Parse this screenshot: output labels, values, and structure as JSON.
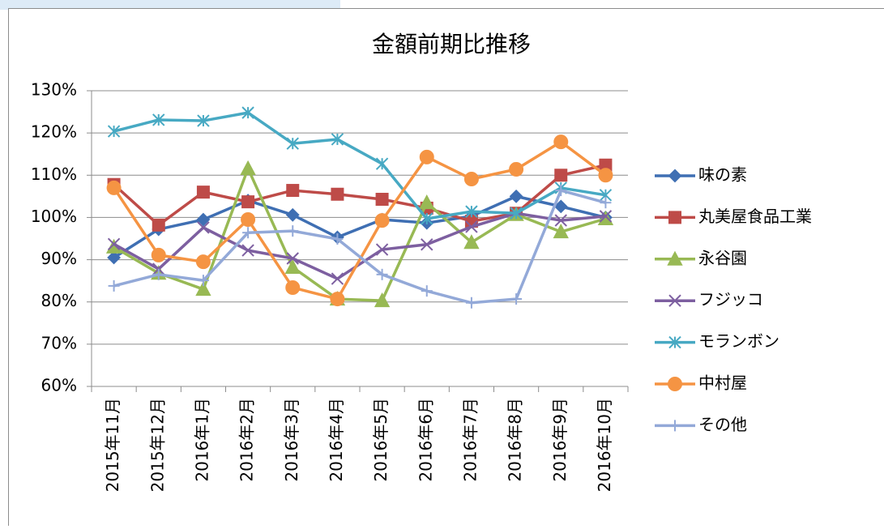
{
  "chart_data": {
    "type": "line",
    "title": "金額前期比推移",
    "categories": [
      "2015年11月",
      "2015年12月",
      "2016年1月",
      "2016年2月",
      "2016年3月",
      "2016年4月",
      "2016年5月",
      "2016年6月",
      "2016年7月",
      "2016年8月",
      "2016年9月",
      "2016年10月"
    ],
    "ylim": [
      60,
      130
    ],
    "yticks": [
      {
        "value": 60,
        "label": "60%"
      },
      {
        "value": 70,
        "label": "70%"
      },
      {
        "value": 80,
        "label": "80%"
      },
      {
        "value": 90,
        "label": "90%"
      },
      {
        "value": 100,
        "label": "100%"
      },
      {
        "value": 110,
        "label": "110%"
      },
      {
        "value": 120,
        "label": "120%"
      },
      {
        "value": 130,
        "label": "130%"
      }
    ],
    "grid": true,
    "legend": "right",
    "series": [
      {
        "name": "味の素",
        "color": "#3f6fb3",
        "marker": "diamond",
        "values": [
          90.5,
          97.2,
          99.5,
          104,
          100.6,
          95.3,
          99.5,
          98.7,
          100.3,
          105,
          102.6,
          100
        ]
      },
      {
        "name": "丸美屋食品工業",
        "color": "#be4b48",
        "marker": "square",
        "values": [
          107.8,
          98.2,
          106,
          103.7,
          106.4,
          105.5,
          104.3,
          102.2,
          99.1,
          101,
          110,
          112.4
        ]
      },
      {
        "name": "永谷園",
        "color": "#98b954",
        "marker": "triangle",
        "values": [
          93,
          86.8,
          83,
          111.6,
          88.2,
          80.7,
          80.3,
          103.5,
          94.1,
          100.7,
          96.6,
          99.7
        ]
      },
      {
        "name": "フジッコ",
        "color": "#7d5fa0",
        "marker": "x",
        "values": [
          93.7,
          87.8,
          97.6,
          92.2,
          90.3,
          85.5,
          92.4,
          93.6,
          97.8,
          101,
          99.3,
          100.3
        ]
      },
      {
        "name": "モランボン",
        "color": "#47a9c3",
        "marker": "star",
        "values": [
          120.4,
          123.1,
          122.9,
          124.8,
          117.5,
          118.5,
          112.7,
          99.7,
          101.4,
          101,
          107,
          105.3
        ]
      },
      {
        "name": "中村屋",
        "color": "#f59443",
        "marker": "circle",
        "values": [
          107,
          91.1,
          89.5,
          99.5,
          83.4,
          80.7,
          99.3,
          114.3,
          109.1,
          111.4,
          117.9,
          110
        ]
      },
      {
        "name": "その他",
        "color": "#93a9d8",
        "marker": "plus",
        "values": [
          83.8,
          86.5,
          85.1,
          96.4,
          96.8,
          94.9,
          86.5,
          82.6,
          79.8,
          80.7,
          106.4,
          103.5
        ]
      }
    ]
  }
}
